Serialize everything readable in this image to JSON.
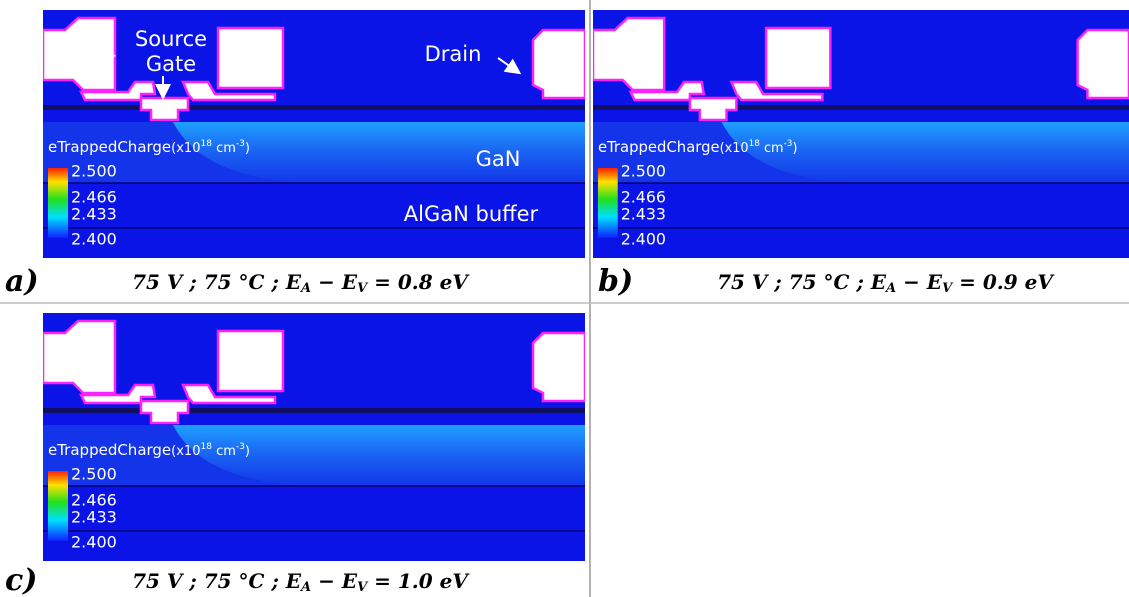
{
  "panels": [
    {
      "label": "a)",
      "caption": [
        {
          "t": "75 V ; 75 °C ; E"
        },
        {
          "sub": "A"
        },
        {
          "t": " − E"
        },
        {
          "sub": "V"
        },
        {
          "t": " = 0.8 eV"
        }
      ],
      "colorbar": {
        "title": [
          "eTrappedCharge",
          "(x10",
          "18",
          " cm",
          "-3",
          ")"
        ],
        "ticks": [
          "2.500",
          "2.466",
          "2.433",
          "2.400"
        ]
      },
      "annotations": [
        "Source",
        "Gate",
        "Drain",
        "GaN",
        "AlGaN buffer"
      ]
    },
    {
      "label": "b)",
      "caption": [
        {
          "t": "75 V ; 75 °C ; E"
        },
        {
          "sub": "A"
        },
        {
          "t": " − E"
        },
        {
          "sub": "V"
        },
        {
          "t": " = 0.9 eV"
        }
      ],
      "colorbar": {
        "title": [
          "eTrappedCharge",
          "(x10",
          "18",
          " cm",
          "-3",
          ")"
        ],
        "ticks": [
          "2.500",
          "2.466",
          "2.433",
          "2.400"
        ]
      },
      "annotations": []
    },
    {
      "label": "c)",
      "caption": [
        {
          "t": "75 V ; 75 °C ; E"
        },
        {
          "sub": "A"
        },
        {
          "t": " − E"
        },
        {
          "sub": "V"
        },
        {
          "t": " = 1.0 eV"
        }
      ],
      "colorbar": {
        "title": [
          "eTrappedCharge",
          "(x10",
          "18",
          " cm",
          "-3",
          ")"
        ],
        "ticks": [
          "2.500",
          "2.466",
          "2.433",
          "2.400"
        ]
      },
      "annotations": []
    }
  ]
}
